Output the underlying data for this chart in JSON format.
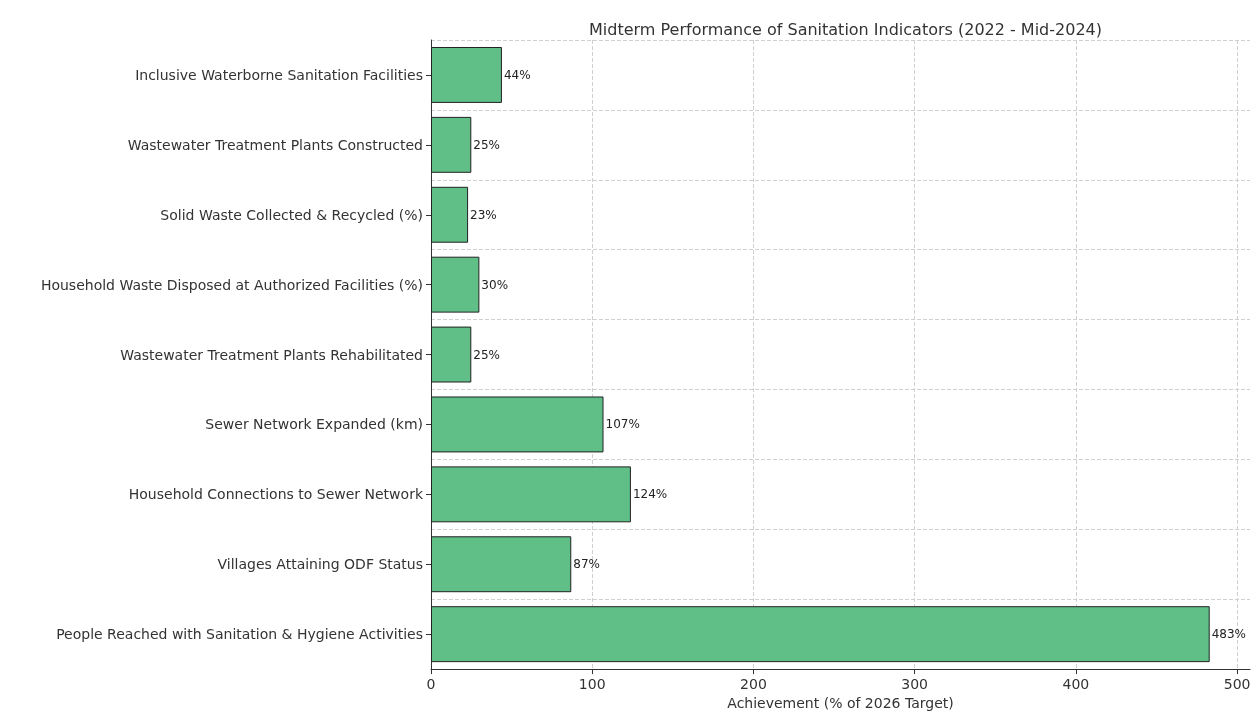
{
  "chart_data": {
    "type": "bar",
    "orientation": "horizontal",
    "title": "Midterm Performance of Sanitation Indicators (2022 - Mid-2024)",
    "xlabel": "Achievement (% of 2026 Target)",
    "categories": [
      "Inclusive Waterborne Sanitation Facilities",
      "Wastewater Treatment Plants Constructed",
      "Solid Waste Collected & Recycled (%)",
      "Household Waste Disposed at Authorized Facilities (%)",
      "Wastewater Treatment Plants Rehabilitated",
      "Sewer Network Expanded (km)",
      "Household Connections to Sewer Network",
      "Villages Attaining ODF Status",
      "People Reached with Sanitation & Hygiene Activities"
    ],
    "values": [
      44,
      25,
      23,
      30,
      25,
      107,
      124,
      87,
      483
    ],
    "value_labels": [
      "44%",
      "25%",
      "23%",
      "30%",
      "25%",
      "107%",
      "124%",
      "87%",
      "483%"
    ],
    "color": "#5fbf87",
    "xlim": [
      0,
      508
    ],
    "xticks": [
      0,
      100,
      200,
      300,
      400,
      500
    ],
    "grid": true
  }
}
